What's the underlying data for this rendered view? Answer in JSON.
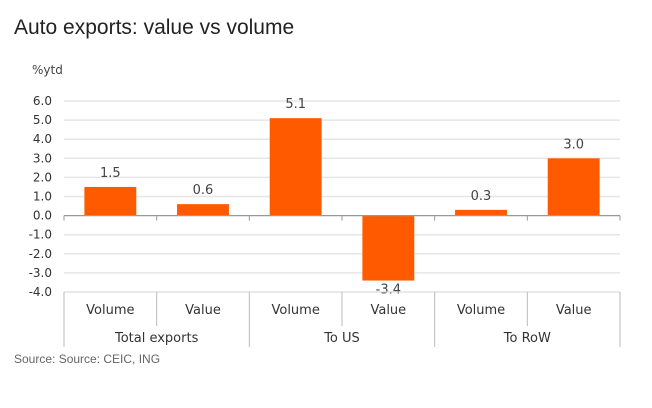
{
  "chart_data": {
    "type": "bar",
    "title": "Auto exports: value vs volume",
    "ylabel": "%ytd",
    "xlabel": "",
    "ylim": [
      -4.0,
      6.0
    ],
    "yticks": [
      "6.0",
      "5.0",
      "4.0",
      "3.0",
      "2.0",
      "1.0",
      "0.0",
      "-1.0",
      "-2.0",
      "-3.0",
      "-4.0"
    ],
    "ytick_values": [
      6,
      5,
      4,
      3,
      2,
      1,
      0,
      -1,
      -2,
      -3,
      -4
    ],
    "grid": true,
    "legend": "none",
    "categories": [
      "Volume",
      "Value",
      "Volume",
      "Value",
      "Volume",
      "Value"
    ],
    "groups": [
      {
        "label": "Total exports",
        "span": 2
      },
      {
        "label": "To US",
        "span": 2
      },
      {
        "label": "To RoW",
        "span": 2
      }
    ],
    "values": [
      1.5,
      0.6,
      5.1,
      -3.4,
      0.3,
      3.0
    ],
    "data_labels": [
      "1.5",
      "0.6",
      "5.1",
      "-3.4",
      "0.3",
      "3.0"
    ],
    "bar_color": "#FF5A00",
    "source": "Source: Source: CEIC, ING"
  }
}
